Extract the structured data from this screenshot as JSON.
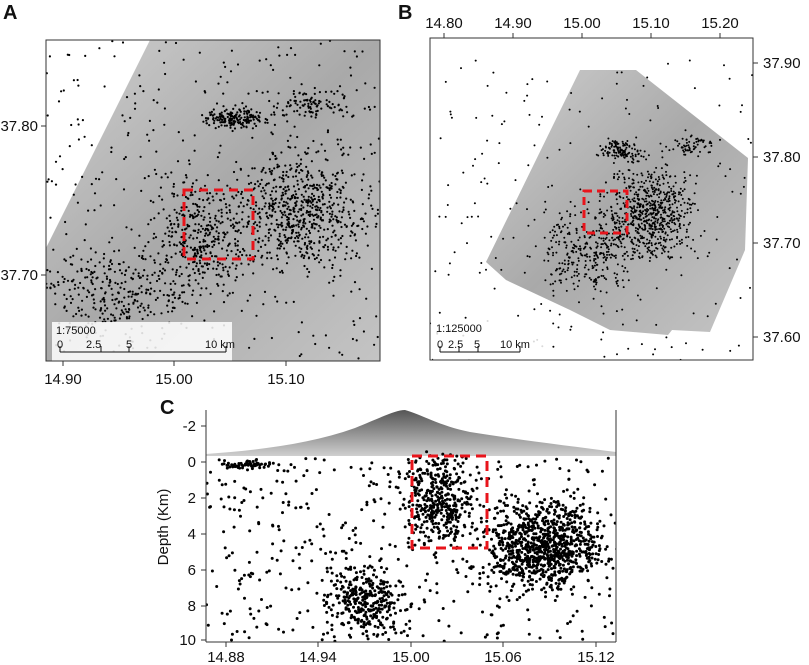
{
  "panels": {
    "a": {
      "letter": "A",
      "x_ticks": [
        "14.90",
        "15.00",
        "15.10"
      ],
      "y_ticks": [
        "37.80",
        "37.70"
      ],
      "scale_label": "1:75000",
      "scale_ticks": [
        "0",
        "2.5",
        "5",
        "10 km"
      ]
    },
    "b": {
      "letter": "B",
      "x_ticks": [
        "14.80",
        "14.90",
        "15.00",
        "15.10",
        "15.20"
      ],
      "y_ticks": [
        "37.90",
        "37.80",
        "37.70",
        "37.60"
      ],
      "scale_label": "1:125000",
      "scale_ticks": [
        "0",
        "2.5",
        "5",
        "10 km"
      ]
    },
    "c": {
      "letter": "C",
      "x_ticks": [
        "14.88",
        "14.94",
        "15.00",
        "15.06",
        "15.12"
      ],
      "y_ticks": [
        "-2",
        "0",
        "2",
        "4",
        "6",
        "8",
        "10"
      ],
      "ylabel": "Depth (Km)"
    }
  },
  "colors": {
    "box": "#e8141b",
    "dots": "#000000",
    "relief": "#b5b5b5"
  }
}
